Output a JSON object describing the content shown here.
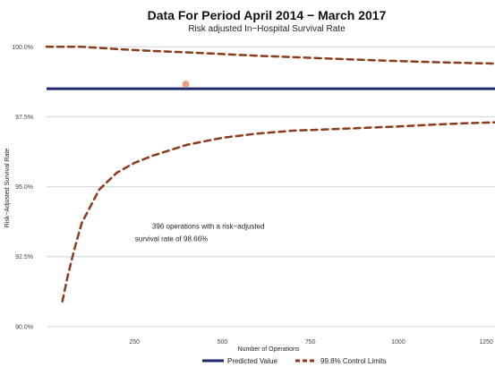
{
  "chart_data": {
    "type": "line",
    "title": "Data For Period April 2014 − March 2017",
    "subtitle": "Risk adjusted In−Hospital Survival Rate",
    "xlabel": "Number of Operations",
    "ylabel": "Risk−Adjusted Survival Rate",
    "xlim": [
      0,
      1275
    ],
    "ylim": [
      89.9,
      100.2
    ],
    "x_ticks": [
      250,
      500,
      750,
      1000,
      1250
    ],
    "x_tick_labels": [
      "250",
      "500",
      "750",
      "1000",
      "1250"
    ],
    "y_ticks": [
      90.0,
      92.5,
      95.0,
      97.5,
      100.0
    ],
    "y_tick_labels": [
      "90.0%",
      "92.5%",
      "95.0%",
      "97.5%",
      "100.0%"
    ],
    "grid": "horizontal",
    "legend_position": "bottom",
    "series": [
      {
        "name": "Predicted Value",
        "style": "solid",
        "color": "#1f2a6e",
        "x": [
          0,
          1275
        ],
        "y": [
          98.5,
          98.5
        ]
      },
      {
        "name": "99.8% Control Limits",
        "style": "dashed",
        "color": "#8b3a1a",
        "x": [
          0,
          100,
          200,
          300,
          400,
          500,
          600,
          700,
          800,
          900,
          1000,
          1100,
          1200,
          1275
        ],
        "y": [
          100.0,
          100.0,
          99.92,
          99.85,
          99.8,
          99.74,
          99.68,
          99.63,
          99.58,
          99.53,
          99.49,
          99.45,
          99.42,
          99.4
        ]
      },
      {
        "name": "99.8% Control Limits (lower)",
        "style": "dashed",
        "color": "#8b3a1a",
        "x": [
          45,
          60,
          80,
          100,
          150,
          200,
          250,
          300,
          400,
          500,
          600,
          700,
          800,
          900,
          1000,
          1100,
          1200,
          1275
        ],
        "y": [
          90.9,
          91.8,
          92.8,
          93.7,
          94.9,
          95.5,
          95.85,
          96.1,
          96.5,
          96.75,
          96.9,
          97.0,
          97.05,
          97.1,
          97.15,
          97.22,
          97.27,
          97.3
        ]
      }
    ],
    "points": [
      {
        "x": 396,
        "y": 98.66,
        "color": "#e8a07a"
      }
    ],
    "annotation": {
      "line1": "396 operations with a risk−adjusted",
      "line2": "survival rate of 98.66%",
      "x": 460,
      "y": 93.5
    },
    "legend": [
      {
        "label": "Predicted Value",
        "style": "solid",
        "color": "#1f2a6e"
      },
      {
        "label": "99.8% Control Limits",
        "style": "dashed",
        "color": "#8b3a1a"
      }
    ]
  }
}
